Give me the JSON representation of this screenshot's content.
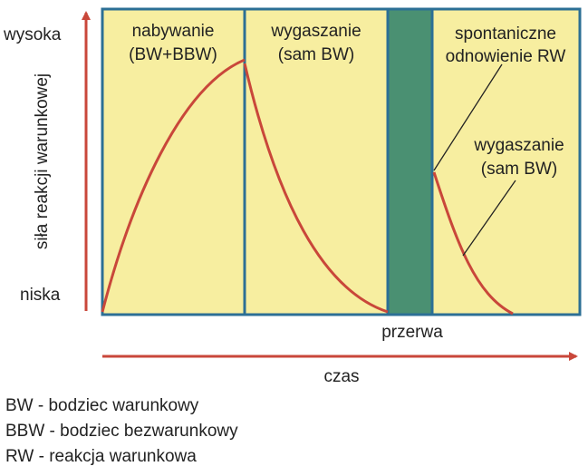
{
  "y_axis": {
    "label": "siła reakcji warunkowej",
    "high_label": "wysoka",
    "low_label": "niska"
  },
  "x_axis": {
    "label": "czas"
  },
  "phases": [
    {
      "line1": "nabywanie",
      "line2": "(BW+BBW)"
    },
    {
      "line1": "wygaszanie",
      "line2": "(sam BW)"
    },
    {
      "line1": "spontaniczne",
      "line2": "odnowienie RW"
    }
  ],
  "break_label": "przerwa",
  "extinction2": {
    "line1": "wygaszanie",
    "line2": "(sam BW)"
  },
  "legend": [
    "BW - bodziec warunkowy",
    "BBW - bodziec bezwarunkowy",
    "RW - reakcja warunkowa"
  ],
  "colors": {
    "panel_fill": "#f7eea0",
    "panel_border": "#2c6f95",
    "break_fill": "#4a9072",
    "curve": "#c9473a",
    "axis_arrow": "#c9473a"
  }
}
